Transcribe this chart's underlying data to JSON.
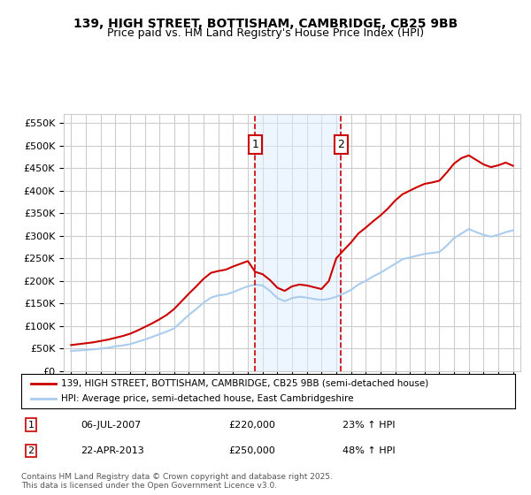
{
  "title_line1": "139, HIGH STREET, BOTTISHAM, CAMBRIDGE, CB25 9BB",
  "title_line2": "Price paid vs. HM Land Registry's House Price Index (HPI)",
  "ylabel": "",
  "background_color": "#ffffff",
  "plot_bg_color": "#ffffff",
  "grid_color": "#cccccc",
  "hpi_color": "#aaccee",
  "price_color": "#cc0000",
  "sale1_date_label": "06-JUL-2007",
  "sale1_price_label": "£220,000",
  "sale1_hpi_label": "23% ↑ HPI",
  "sale2_date_label": "22-APR-2013",
  "sale2_price_label": "£250,000",
  "sale2_hpi_label": "48% ↑ HPI",
  "sale1_year": 2007.5,
  "sale2_year": 2013.33,
  "sale1_price": 220000,
  "sale2_price": 250000,
  "legend_line1": "139, HIGH STREET, BOTTISHAM, CAMBRIDGE, CB25 9BB (semi-detached house)",
  "legend_line2": "HPI: Average price, semi-detached house, East Cambridgeshire",
  "footer": "Contains HM Land Registry data © Crown copyright and database right 2025.\nThis data is licensed under the Open Government Licence v3.0.",
  "ylim": [
    0,
    570000
  ],
  "xlim_start": 1994.5,
  "xlim_end": 2025.5
}
